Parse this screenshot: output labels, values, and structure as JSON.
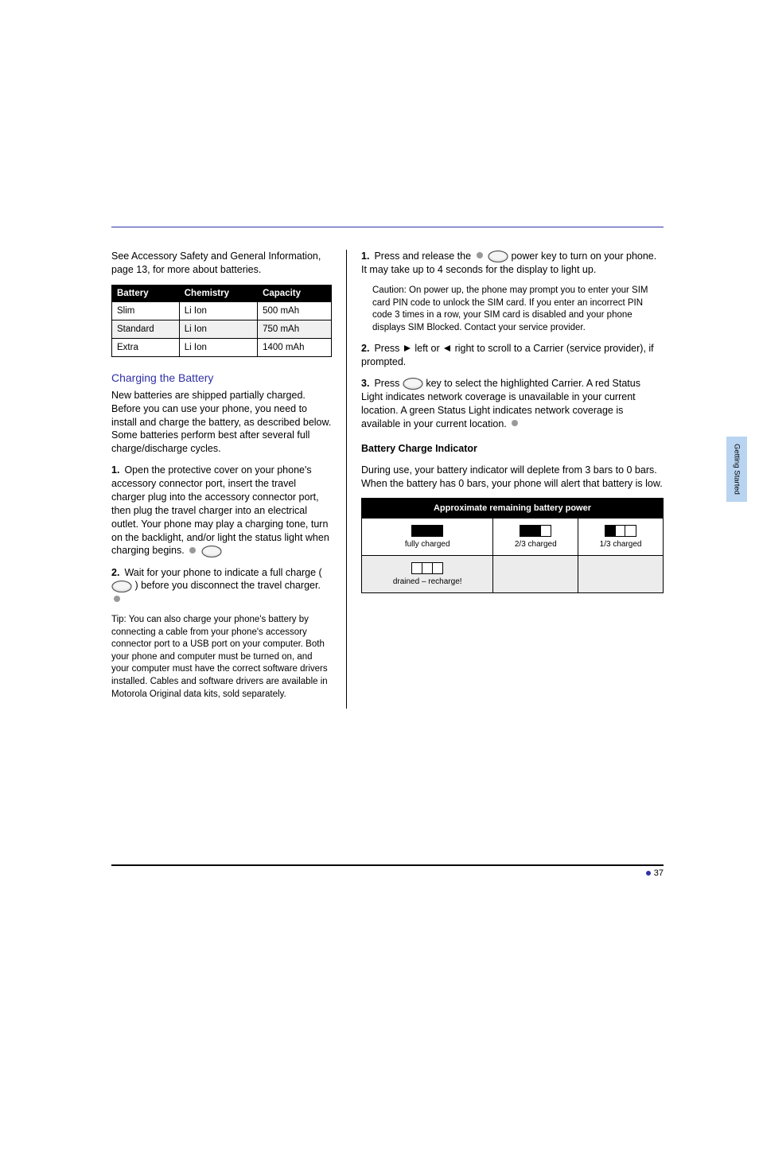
{
  "header": {
    "rule_color": "#3030a8"
  },
  "side_tab": {
    "text": "Getting Started"
  },
  "left": {
    "intro": "See Accessory Safety and General Information, page 13, for more about batteries.",
    "table": {
      "columns": [
        "Battery",
        "Chemistry",
        "Capacity"
      ],
      "rows": [
        [
          "Slim",
          "Li Ion",
          "500 mAh"
        ],
        [
          "Standard",
          "Li Ion",
          "750 mAh"
        ],
        [
          "Extra",
          "Li Ion",
          "1400 mAh"
        ]
      ]
    },
    "section_title": "Charging the Battery",
    "intro2": "New batteries are shipped partially charged. Before you can use your phone, you need to install and charge the battery, as described below. Some batteries perform best after several full charge/discharge cycles.",
    "steps": [
      {
        "n": "1",
        "text": "Open the protective cover on your phone's accessory connector port, insert the travel charger plug into the accessory connector port, then plug the travel charger into an electrical outlet. Your phone may play a charging tone, turn on the backlight, and/or light the status light when charging begins."
      },
      {
        "n": "2",
        "text": "Wait for your phone to indicate a full charge (",
        "tail": ") before you disconnect the travel charger."
      }
    ],
    "tip": "Tip: You can also charge your phone's battery by connecting a cable from your phone's accessory connector port to a USB port on your computer. Both your phone and computer must be turned on, and your computer must have the correct software drivers installed. Cables and software drivers are available in Motorola Original data kits, sold separately."
  },
  "right": {
    "steps": [
      {
        "n": "1",
        "pre": "Press and release the ",
        "post": " power key to turn on your phone. It may take up to 4 seconds for the display to light up."
      },
      {
        "note": "Caution: On power up, the phone may prompt you to enter your SIM card PIN code to unlock the SIM card. If you enter an incorrect PIN code 3 times in a row, your SIM card is disabled and your phone displays SIM Blocked. Contact your service provider."
      },
      {
        "n": "2",
        "pre": "Press ",
        "mid": " left or ",
        "post": " right to scroll to a Carrier (service provider), if prompted."
      },
      {
        "n": "3",
        "pre": "Press ",
        "post": " key to select the highlighted Carrier. A red Status Light indicates network coverage is unavailable in your current location. A green Status Light indicates network coverage is available in your current location."
      }
    ],
    "battery_title": "Battery Charge Indicator",
    "battery_text": "During use, your battery indicator will deplete from 3 bars to 0 bars. When the battery has 0 bars, your phone will alert that battery is low.",
    "indic_table": {
      "header": "Approximate remaining battery power",
      "cells": [
        {
          "bars": 3,
          "fill": [
            1,
            1,
            1
          ],
          "caption": "fully charged"
        },
        {
          "bars": 3,
          "fill": [
            1,
            1,
            0
          ],
          "caption": "2/3 charged"
        },
        {
          "bars": 3,
          "fill": [
            1,
            0,
            0
          ],
          "caption": "1/3 charged"
        },
        {
          "bars": 3,
          "fill": [
            0,
            0,
            0
          ],
          "caption": "drained – recharge!"
        }
      ]
    }
  },
  "footer": {
    "left": "",
    "right_page": "37"
  },
  "icons": {
    "oval_button": {
      "w": 26,
      "h": 15,
      "rx": 12,
      "ry": 7,
      "stroke": "#555",
      "fill": "#e9e9e9",
      "shade": "#ccc"
    },
    "dot_gray": {
      "r": 4,
      "fill": "#999"
    },
    "triangle": {
      "size": 8,
      "fill": "#000"
    }
  }
}
